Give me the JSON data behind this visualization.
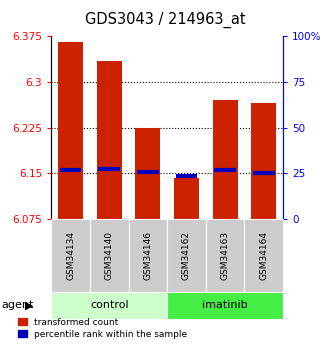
{
  "title": "GDS3043 / 214963_at",
  "samples": [
    "GSM34134",
    "GSM34140",
    "GSM34146",
    "GSM34162",
    "GSM34163",
    "GSM34164"
  ],
  "red_values": [
    6.365,
    6.335,
    6.225,
    6.143,
    6.27,
    6.265
  ],
  "blue_values": [
    6.155,
    6.157,
    6.153,
    6.146,
    6.155,
    6.151
  ],
  "ylim_left": [
    6.075,
    6.375
  ],
  "ylim_right": [
    0,
    100
  ],
  "yticks_left": [
    6.075,
    6.15,
    6.225,
    6.3,
    6.375
  ],
  "yticks_right": [
    0,
    25,
    50,
    75,
    100
  ],
  "groups": [
    {
      "label": "control",
      "indices": [
        0,
        1,
        2
      ],
      "color": "#ccffcc"
    },
    {
      "label": "imatinib",
      "indices": [
        3,
        4,
        5
      ],
      "color": "#44ee44"
    }
  ],
  "bar_bottom": 6.075,
  "bar_width": 0.65,
  "red_color": "#cc2200",
  "blue_color": "#0000bb",
  "blue_thickness": 3,
  "legend_red": "transformed count",
  "legend_blue": "percentile rank within the sample",
  "sample_box_color": "#cccccc",
  "figsize": [
    3.31,
    3.45
  ],
  "dpi": 100,
  "title_fontsize": 10.5,
  "tick_fontsize": 7.5,
  "sample_fontsize": 6.5,
  "group_fontsize": 8,
  "legend_fontsize": 6.5,
  "agent_fontsize": 8
}
